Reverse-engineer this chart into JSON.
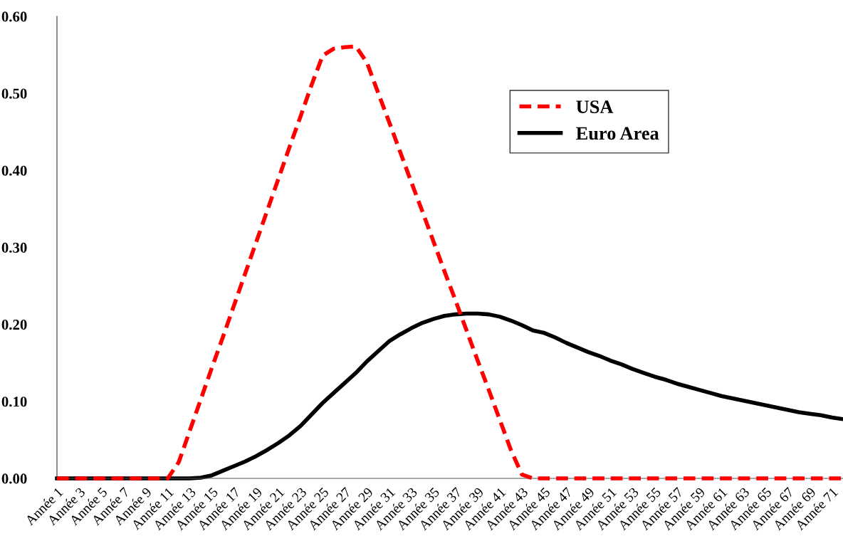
{
  "chart_data": {
    "type": "line",
    "categories": [
      "Année 1",
      null,
      "Année 3",
      null,
      "Année 5",
      null,
      "Année 7",
      null,
      "Année 9",
      null,
      "Année 11",
      null,
      "Année 13",
      null,
      "Année 15",
      null,
      "Année 17",
      null,
      "Année 19",
      null,
      "Année 21",
      null,
      "Année 23",
      null,
      "Année 25",
      null,
      "Année 27",
      null,
      "Année 29",
      null,
      "Année 31",
      null,
      "Année 33",
      null,
      "Année 35",
      null,
      "Année 37",
      null,
      "Année 39",
      null,
      "Année 41",
      null,
      "Année 43",
      null,
      "Année 45",
      null,
      "Année 47",
      null,
      "Année 49",
      null,
      "Année 51",
      null,
      "Année 53",
      null,
      "Année 55",
      null,
      "Année 57",
      null,
      "Année 59",
      null,
      "Année 61",
      null,
      "Année 63",
      null,
      "Année 65",
      null,
      "Année 67",
      null,
      "Année 69",
      null,
      "Année 71",
      null
    ],
    "series": [
      {
        "name": "USA",
        "color": "#ff0000",
        "line_style": "dashed",
        "values": [
          0,
          0,
          0,
          0,
          0,
          0,
          0,
          0,
          0,
          0,
          0,
          0.021,
          0.062,
          0.103,
          0.144,
          0.184,
          0.225,
          0.266,
          0.307,
          0.348,
          0.389,
          0.43,
          0.47,
          0.511,
          0.549,
          0.558,
          0.56,
          0.561,
          0.54,
          0.501,
          0.463,
          0.424,
          0.385,
          0.347,
          0.308,
          0.269,
          0.231,
          0.192,
          0.153,
          0.115,
          0.076,
          0.037,
          0.005,
          0,
          0,
          0,
          0,
          0,
          0,
          0,
          0,
          0,
          0,
          0,
          0,
          0,
          0,
          0,
          0,
          0,
          0,
          0,
          0,
          0,
          0,
          0,
          0,
          0,
          0,
          0,
          0,
          0
        ]
      },
      {
        "name": "Euro Area",
        "color": "#000000",
        "line_style": "solid",
        "values": [
          0,
          0,
          0,
          0,
          0,
          0,
          0,
          0,
          0,
          0,
          0,
          0,
          0,
          0.001,
          0.004,
          0.01,
          0.016,
          0.022,
          0.029,
          0.037,
          0.046,
          0.056,
          0.068,
          0.083,
          0.098,
          0.111,
          0.124,
          0.137,
          0.152,
          0.165,
          0.178,
          0.187,
          0.195,
          0.202,
          0.207,
          0.211,
          0.213,
          0.214,
          0.214,
          0.213,
          0.21,
          0.205,
          0.199,
          0.192,
          0.189,
          0.183,
          0.176,
          0.17,
          0.164,
          0.159,
          0.153,
          0.148,
          0.142,
          0.137,
          0.132,
          0.128,
          0.123,
          0.119,
          0.115,
          0.111,
          0.107,
          0.104,
          0.101,
          0.098,
          0.095,
          0.092,
          0.089,
          0.086,
          0.084,
          0.082,
          0.079,
          0.077
        ]
      }
    ],
    "ylim": [
      0,
      0.6
    ],
    "yticks": [
      {
        "value": 0,
        "label": "0.00"
      },
      {
        "value": 0.1,
        "label": "0.10"
      },
      {
        "value": 0.2,
        "label": "0.20"
      },
      {
        "value": 0.3,
        "label": "0.30"
      },
      {
        "value": 0.4,
        "label": "0.40"
      },
      {
        "value": 0.5,
        "label": "0.50"
      },
      {
        "value": 0.6,
        "label": "0.60"
      }
    ],
    "grid": false,
    "legend": "top right",
    "marker": "none"
  }
}
